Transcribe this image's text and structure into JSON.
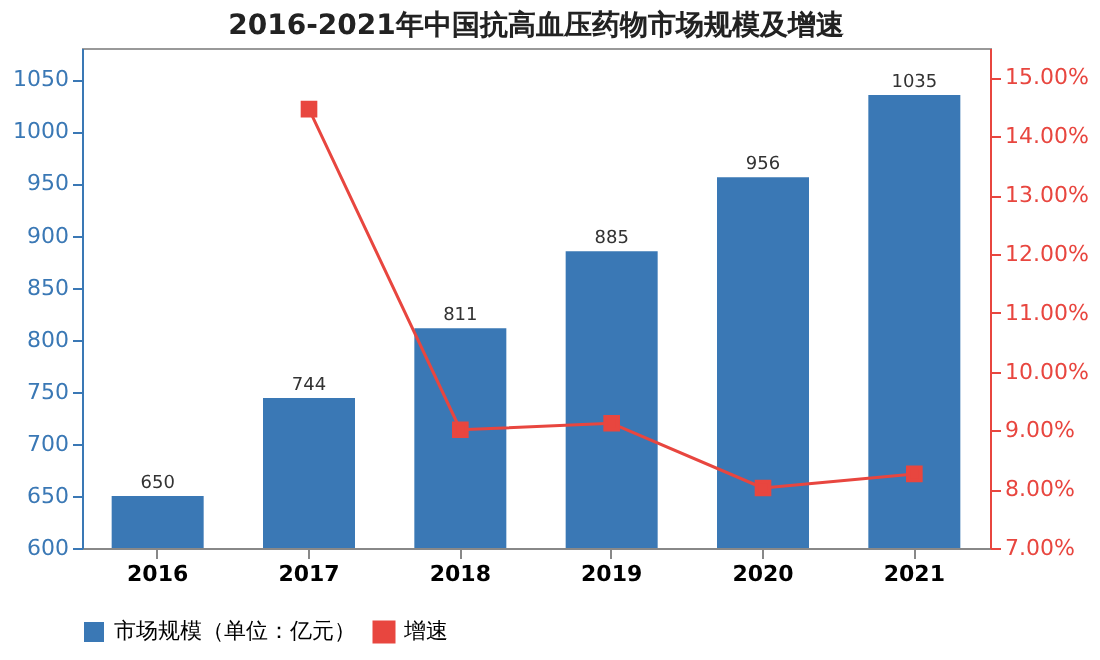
{
  "chart_data": {
    "type": "bar",
    "title": "2016-2021年中国抗高血压药物市场规模及增速",
    "categories": [
      "2016",
      "2017",
      "2018",
      "2019",
      "2020",
      "2021"
    ],
    "series": [
      {
        "name": "市场规模（单位：亿元）",
        "color": "#3a78b5",
        "values": [
          650,
          744,
          811,
          885,
          956,
          1035
        ],
        "value_labels": [
          "650",
          "744",
          "811",
          "885",
          "956",
          "1035"
        ]
      },
      {
        "name": "增速",
        "type": "line",
        "axis": "y2",
        "color": "#e8463f",
        "marker": "square",
        "values": [
          null,
          14.46,
          9.01,
          9.12,
          8.02,
          8.26
        ]
      }
    ],
    "ylim": [
      600,
      1080
    ],
    "yticks": [
      600,
      650,
      700,
      750,
      800,
      850,
      900,
      950,
      1000,
      1050
    ],
    "y2lim": [
      7,
      15.5
    ],
    "y2ticks": [
      {
        "value": 7,
        "label": "7.00%"
      },
      {
        "value": 8,
        "label": "8.00%"
      },
      {
        "value": 9,
        "label": "9.00%"
      },
      {
        "value": 10,
        "label": "10.00%"
      },
      {
        "value": 11,
        "label": "11.00%"
      },
      {
        "value": 12,
        "label": "12.00%"
      },
      {
        "value": 13,
        "label": "13.00%"
      },
      {
        "value": 14,
        "label": "14.00%"
      },
      {
        "value": 15,
        "label": "15.00%"
      }
    ],
    "grid": false,
    "legend": "bottom"
  }
}
